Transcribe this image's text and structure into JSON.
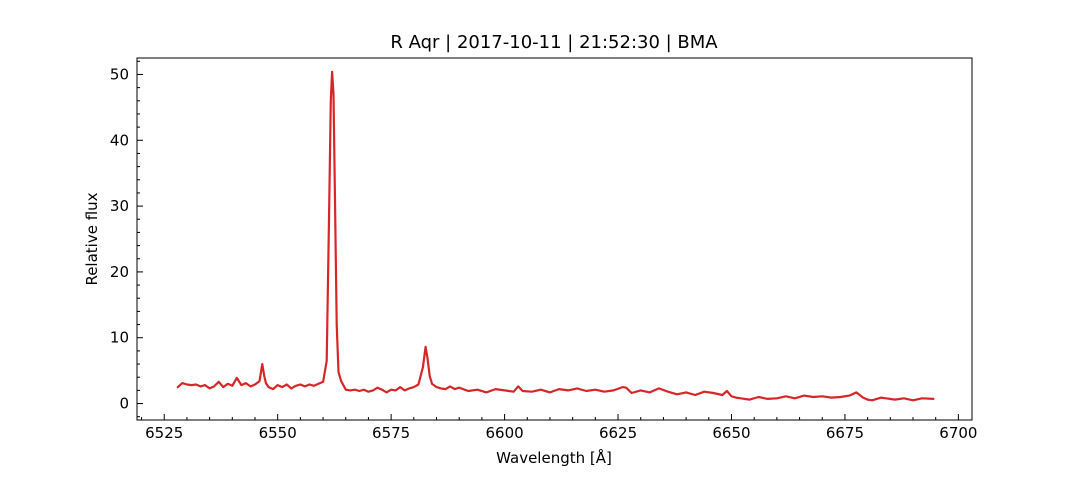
{
  "chart_data": {
    "type": "line",
    "title": "R Aqr | 2017-10-11 | 21:52:30 | BMA",
    "xlabel": "Wavelength [Å]",
    "ylabel": "Relative flux",
    "xlim": [
      6519,
      6703
    ],
    "ylim": [
      -2.5,
      52.5
    ],
    "x_ticks": [
      "6525",
      "6550",
      "6575",
      "6600",
      "6625",
      "6650",
      "6675",
      "6700"
    ],
    "y_ticks": [
      "0",
      "10",
      "20",
      "30",
      "40",
      "50"
    ],
    "grid": false,
    "line_color": "#d62728",
    "x": [
      6528.0,
      6529.0,
      6530.0,
      6531.0,
      6532.0,
      6533.0,
      6534.0,
      6535.0,
      6536.0,
      6537.0,
      6538.0,
      6539.0,
      6540.0,
      6541.0,
      6542.0,
      6543.0,
      6544.0,
      6545.0,
      6546.0,
      6546.6,
      6547.0,
      6547.4,
      6548.0,
      6549.0,
      6550.0,
      6551.0,
      6552.0,
      6553.0,
      6554.0,
      6555.0,
      6556.0,
      6557.0,
      6558.0,
      6559.0,
      6560.0,
      6560.8,
      6561.3,
      6561.7,
      6562.0,
      6562.3,
      6562.6,
      6563.0,
      6563.4,
      6564.0,
      6565.0,
      6566.0,
      6567.0,
      6568.0,
      6569.0,
      6570.0,
      6571.0,
      6572.0,
      6573.0,
      6574.0,
      6575.0,
      6576.0,
      6577.0,
      6578.0,
      6579.0,
      6580.0,
      6581.0,
      6582.0,
      6582.6,
      6583.0,
      6583.5,
      6584.0,
      6585.0,
      6586.0,
      6587.0,
      6588.0,
      6589.0,
      6590.0,
      6592.0,
      6594.0,
      6596.0,
      6598.0,
      6600.0,
      6602.0,
      6603.0,
      6604.0,
      6606.0,
      6608.0,
      6610.0,
      6612.0,
      6614.0,
      6616.0,
      6618.0,
      6620.0,
      6622.0,
      6624.0,
      6626.0,
      6626.8,
      6628.0,
      6630.0,
      6632.0,
      6634.0,
      6636.0,
      6638.0,
      6640.0,
      6642.0,
      6644.0,
      6646.0,
      6648.0,
      6649.0,
      6650.0,
      6651.0,
      6652.0,
      6654.0,
      6656.0,
      6658.0,
      6660.0,
      6662.0,
      6664.0,
      6666.0,
      6668.0,
      6670.0,
      6672.0,
      6674.0,
      6676.0,
      6677.5,
      6679.0,
      6680.0,
      6681.0,
      6682.0,
      6683.0,
      6684.0,
      6686.0,
      6688.0,
      6690.0,
      6692.0,
      6694.5
    ],
    "y": [
      2.5,
      3.1,
      2.9,
      2.8,
      2.9,
      2.6,
      2.8,
      2.3,
      2.6,
      3.3,
      2.5,
      3.0,
      2.7,
      3.9,
      2.8,
      3.1,
      2.6,
      2.9,
      3.4,
      6.0,
      4.3,
      3.1,
      2.5,
      2.2,
      2.8,
      2.5,
      2.9,
      2.3,
      2.7,
      2.9,
      2.6,
      2.9,
      2.7,
      3.0,
      3.3,
      6.5,
      28.0,
      46.0,
      50.4,
      47.0,
      32.0,
      12.0,
      4.8,
      3.4,
      2.1,
      2.0,
      2.1,
      1.9,
      2.1,
      1.8,
      2.0,
      2.4,
      2.1,
      1.7,
      2.1,
      2.0,
      2.5,
      2.0,
      2.3,
      2.5,
      2.9,
      5.5,
      8.6,
      7.0,
      4.2,
      3.0,
      2.5,
      2.3,
      2.2,
      2.6,
      2.2,
      2.4,
      1.9,
      2.1,
      1.7,
      2.2,
      2.0,
      1.8,
      2.6,
      1.9,
      1.8,
      2.1,
      1.7,
      2.2,
      2.0,
      2.3,
      1.9,
      2.1,
      1.8,
      2.0,
      2.5,
      2.4,
      1.6,
      2.0,
      1.7,
      2.3,
      1.8,
      1.4,
      1.7,
      1.3,
      1.8,
      1.6,
      1.3,
      1.9,
      1.1,
      0.9,
      0.8,
      0.6,
      1.0,
      0.7,
      0.8,
      1.1,
      0.8,
      1.2,
      1.0,
      1.1,
      0.9,
      1.0,
      1.2,
      1.7,
      0.9,
      0.6,
      0.5,
      0.7,
      0.9,
      0.8,
      0.6,
      0.8,
      0.5,
      0.8,
      0.7
    ]
  }
}
